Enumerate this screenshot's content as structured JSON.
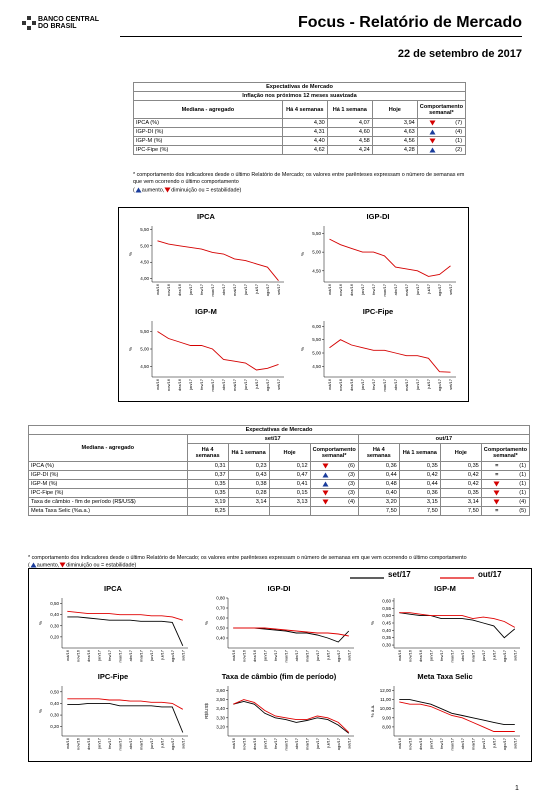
{
  "header": {
    "logo": [
      "BANCO CENTRAL",
      "DO BRASIL"
    ],
    "title": "Focus - Relatório de Mercado",
    "date": "22 de setembro de 2017"
  },
  "table1": {
    "title": "Expectativas de Mercado",
    "subtitle": "Inflação nos próximos 12 meses suavizada",
    "headers": [
      "Mediana - agregado",
      "Há 4 semanas",
      "Há 1 semana",
      "Hoje",
      "Comportamento semanal*"
    ],
    "rows": [
      {
        "label": "IPCA (%)",
        "values": [
          "4,30",
          "4,07",
          "3,94"
        ],
        "trend": "down",
        "weeks": "(7)"
      },
      {
        "label": "IGP-DI (%)",
        "values": [
          "4,31",
          "4,60",
          "4,63"
        ],
        "trend": "up",
        "weeks": "(4)"
      },
      {
        "label": "IGP-M (%)",
        "values": [
          "4,40",
          "4,58",
          "4,56"
        ],
        "trend": "down",
        "weeks": "(1)"
      },
      {
        "label": "IPC-Fipe (%)",
        "values": [
          "4,62",
          "4,24",
          "4,28"
        ],
        "trend": "up",
        "weeks": "(2)"
      }
    ]
  },
  "note1": {
    "footnote": "* comportamento dos indicadores desde o último Relatório de Mercado; os valores entre parênteses expressam o número de semanas em que vem ocorrendo o último comportamento",
    "legend": {
      "open": "(",
      "up": "aumento,",
      "down": "diminuição ou = estabilidade)"
    }
  },
  "panel1": {
    "categories": [
      "out/16",
      "nov/16",
      "dez/16",
      "jan/17",
      "fev/17",
      "mar/17",
      "abr/17",
      "mai/17",
      "jun/17",
      "jul/17",
      "ago/17",
      "set/17"
    ],
    "charts": [
      {
        "type": "line",
        "title": "IPCA",
        "y_label": "%",
        "ylim": [
          3.9,
          5.6
        ],
        "yticks": [
          {
            "value": 4,
            "label": "4,00"
          },
          {
            "value": 4.5,
            "label": "4,50"
          },
          {
            "value": 5,
            "label": "5,00"
          },
          {
            "value": 5.5,
            "label": "5,50"
          }
        ],
        "series": [
          {
            "color": "#d40000",
            "values": [
              5.15,
              5.05,
              5.0,
              4.95,
              4.9,
              4.8,
              4.75,
              4.6,
              4.55,
              4.45,
              4.35,
              3.94
            ]
          }
        ]
      },
      {
        "type": "line",
        "title": "IGP-DI",
        "y_label": "%",
        "ylim": [
          4.2,
          5.7
        ],
        "yticks": [
          {
            "value": 4.5,
            "label": "4,50"
          },
          {
            "value": 5,
            "label": "5,00"
          },
          {
            "value": 5.5,
            "label": "5,50"
          }
        ],
        "series": [
          {
            "color": "#d40000",
            "values": [
              5.35,
              5.2,
              5.1,
              5.0,
              5.0,
              4.9,
              4.6,
              4.55,
              4.5,
              4.35,
              4.4,
              4.63
            ]
          }
        ]
      },
      {
        "type": "line",
        "title": "IGP-M",
        "y_label": "%",
        "ylim": [
          4.2,
          5.8
        ],
        "yticks": [
          {
            "value": 4.5,
            "label": "4,50"
          },
          {
            "value": 5,
            "label": "5,00"
          },
          {
            "value": 5.5,
            "label": "5,50"
          }
        ],
        "series": [
          {
            "color": "#d40000",
            "values": [
              5.5,
              5.3,
              5.2,
              5.1,
              5.1,
              5.0,
              4.7,
              4.65,
              4.6,
              4.4,
              4.45,
              4.56
            ]
          }
        ]
      },
      {
        "type": "line",
        "title": "IPC-Fipe",
        "y_label": "%",
        "ylim": [
          4.1,
          6.2
        ],
        "yticks": [
          {
            "value": 4.5,
            "label": "4,50"
          },
          {
            "value": 5,
            "label": "5,00"
          },
          {
            "value": 5.5,
            "label": "5,50"
          },
          {
            "value": 6,
            "label": "6,00"
          }
        ],
        "series": [
          {
            "color": "#d40000",
            "values": [
              5.2,
              5.5,
              5.3,
              5.2,
              5.1,
              5.1,
              5.0,
              4.9,
              4.9,
              4.8,
              4.3,
              4.28
            ]
          }
        ]
      }
    ]
  },
  "table2": {
    "title": "Expectativas de Mercado",
    "groups": [
      "set/17",
      "out/17"
    ],
    "headers": [
      "Mediana - agregado",
      "Há 4 semanas",
      "Há 1 semana",
      "Hoje",
      "Comportamento semanal*"
    ],
    "rows": [
      {
        "label": "IPCA (%)",
        "cells": [
          [
            "0,31",
            "0,23",
            "0,12",
            "down",
            "(6)"
          ],
          [
            "0,36",
            "0,35",
            "0,35",
            "=",
            "(1)"
          ]
        ]
      },
      {
        "label": "IGP-DI (%)",
        "cells": [
          [
            "0,37",
            "0,43",
            "0,47",
            "up",
            "(3)"
          ],
          [
            "0,44",
            "0,42",
            "0,42",
            "=",
            "(1)"
          ]
        ]
      },
      {
        "label": "IGP-M (%)",
        "cells": [
          [
            "0,35",
            "0,38",
            "0,41",
            "up",
            "(3)"
          ],
          [
            "0,48",
            "0,44",
            "0,42",
            "down",
            "(1)"
          ]
        ]
      },
      {
        "label": "IPC-Fipe (%)",
        "cells": [
          [
            "0,35",
            "0,28",
            "0,15",
            "down",
            "(3)"
          ],
          [
            "0,40",
            "0,36",
            "0,35",
            "down",
            "(1)"
          ]
        ]
      },
      {
        "label": "Taxa de câmbio - fim de período (R$/US$)",
        "cells": [
          [
            "3,19",
            "3,14",
            "3,13",
            "down",
            "(4)"
          ],
          [
            "3,20",
            "3,15",
            "3,14",
            "down",
            "(4)"
          ]
        ]
      },
      {
        "label": "Meta Taxa Selic (%a.a.)",
        "cells": [
          [
            "8,25",
            null,
            null,
            null,
            null
          ],
          [
            "7,50",
            "7,50",
            "7,50",
            "=",
            "(5)"
          ]
        ]
      }
    ]
  },
  "note2": {
    "footnote": "* comportamento dos indicadores desde o último Relatório de Mercado; os valores entre parênteses expressam o número de semanas em que vem ocorrendo o último comportamento",
    "legend": {
      "open": "(",
      "up": "aumento,",
      "down": "diminuição ou = estabilidade)"
    }
  },
  "panel2": {
    "series": [
      {
        "name": "set/17",
        "color": "#000000"
      },
      {
        "name": "out/17",
        "color": "#e00000"
      }
    ],
    "categories": [
      "out/16",
      "nov/16",
      "dez/16",
      "jan/17",
      "fev/17",
      "mar/17",
      "abr/17",
      "mai/17",
      "jun/17",
      "jul/17",
      "ago/17",
      "set/17"
    ],
    "charts": [
      {
        "type": "line",
        "title": "IPCA",
        "y_label": "%",
        "ylim": [
          0.1,
          0.55
        ],
        "yticks": [
          {
            "value": 0.2,
            "label": "0,20"
          },
          {
            "value": 0.3,
            "label": "0,30"
          },
          {
            "value": 0.4,
            "label": "0,40"
          },
          {
            "value": 0.5,
            "label": "0,50"
          }
        ],
        "series": [
          {
            "values": [
              0.38,
              0.38,
              0.37,
              0.36,
              0.35,
              0.35,
              0.35,
              0.34,
              0.34,
              0.34,
              0.33,
              0.12
            ]
          },
          {
            "values": [
              0.43,
              0.42,
              0.41,
              0.41,
              0.41,
              0.4,
              0.4,
              0.4,
              0.39,
              0.39,
              0.38,
              0.35
            ]
          }
        ]
      },
      {
        "type": "line",
        "title": "IGP-DI",
        "y_label": "%",
        "ylim": [
          0.3,
          0.8
        ],
        "yticks": [
          {
            "value": 0.4,
            "label": "0,40"
          },
          {
            "value": 0.5,
            "label": "0,50"
          },
          {
            "value": 0.6,
            "label": "0,60"
          },
          {
            "value": 0.7,
            "label": "0,70"
          },
          {
            "value": 0.8,
            "label": "0,80"
          }
        ],
        "series": [
          {
            "values": [
              0.5,
              0.5,
              0.5,
              0.49,
              0.48,
              0.47,
              0.45,
              0.45,
              0.43,
              0.4,
              0.36,
              0.47
            ]
          },
          {
            "values": [
              0.5,
              0.5,
              0.5,
              0.5,
              0.49,
              0.48,
              0.47,
              0.46,
              0.45,
              0.45,
              0.44,
              0.42
            ]
          }
        ]
      },
      {
        "type": "line",
        "title": "IGP-M",
        "y_label": "%",
        "ylim": [
          0.28,
          0.62
        ],
        "yticks": [
          {
            "value": 0.3,
            "label": "0,30"
          },
          {
            "value": 0.35,
            "label": "0,35"
          },
          {
            "value": 0.4,
            "label": "0,40"
          },
          {
            "value": 0.45,
            "label": "0,45"
          },
          {
            "value": 0.5,
            "label": "0,50"
          },
          {
            "value": 0.55,
            "label": "0,55"
          },
          {
            "value": 0.6,
            "label": "0,60"
          }
        ],
        "series": [
          {
            "values": [
              0.52,
              0.51,
              0.5,
              0.5,
              0.48,
              0.48,
              0.48,
              0.47,
              0.45,
              0.43,
              0.35,
              0.41
            ]
          },
          {
            "values": [
              0.52,
              0.52,
              0.51,
              0.5,
              0.5,
              0.5,
              0.5,
              0.48,
              0.49,
              0.48,
              0.46,
              0.42
            ]
          }
        ]
      },
      {
        "type": "line",
        "title": "IPC-Fipe",
        "y_label": "%",
        "ylim": [
          0.12,
          0.55
        ],
        "yticks": [
          {
            "value": 0.2,
            "label": "0,20"
          },
          {
            "value": 0.3,
            "label": "0,30"
          },
          {
            "value": 0.4,
            "label": "0,40"
          },
          {
            "value": 0.5,
            "label": "0,50"
          }
        ],
        "series": [
          {
            "values": [
              0.39,
              0.39,
              0.4,
              0.4,
              0.4,
              0.38,
              0.38,
              0.38,
              0.38,
              0.37,
              0.37,
              0.15
            ]
          },
          {
            "values": [
              0.44,
              0.44,
              0.44,
              0.44,
              0.43,
              0.43,
              0.42,
              0.42,
              0.41,
              0.41,
              0.4,
              0.35
            ]
          }
        ]
      },
      {
        "type": "line",
        "title": "Taxa de câmbio (fim de período)",
        "y_label": "R$/US$",
        "ylim": [
          3.1,
          3.65
        ],
        "yticks": [
          {
            "value": 3.2,
            "label": "3,20"
          },
          {
            "value": 3.3,
            "label": "3,30"
          },
          {
            "value": 3.4,
            "label": "3,40"
          },
          {
            "value": 3.5,
            "label": "3,50"
          },
          {
            "value": 3.6,
            "label": "3,60"
          }
        ],
        "series": [
          {
            "values": [
              3.45,
              3.48,
              3.45,
              3.35,
              3.3,
              3.28,
              3.25,
              3.27,
              3.3,
              3.28,
              3.22,
              3.13
            ]
          },
          {
            "values": [
              3.45,
              3.5,
              3.47,
              3.38,
              3.32,
              3.3,
              3.28,
              3.28,
              3.32,
              3.3,
              3.25,
              3.14
            ]
          }
        ]
      },
      {
        "type": "line",
        "title": "Meta Taxa Selic",
        "y_label": "% a.a.",
        "ylim": [
          7,
          12.5
        ],
        "yticks": [
          {
            "value": 8,
            "label": "8,00"
          },
          {
            "value": 9,
            "label": "9,00"
          },
          {
            "value": 10,
            "label": "10,00"
          },
          {
            "value": 11,
            "label": "11,00"
          },
          {
            "value": 12,
            "label": "12,00"
          }
        ],
        "series": [
          {
            "values": [
              11.0,
              11.0,
              10.75,
              10.5,
              10.0,
              9.5,
              9.25,
              9.0,
              8.75,
              8.5,
              8.25,
              8.25
            ]
          },
          {
            "values": [
              10.75,
              10.5,
              10.5,
              10.25,
              9.75,
              9.25,
              9.0,
              8.5,
              8.0,
              7.5,
              7.5,
              7.5
            ]
          }
        ]
      }
    ]
  },
  "page_number": "1"
}
